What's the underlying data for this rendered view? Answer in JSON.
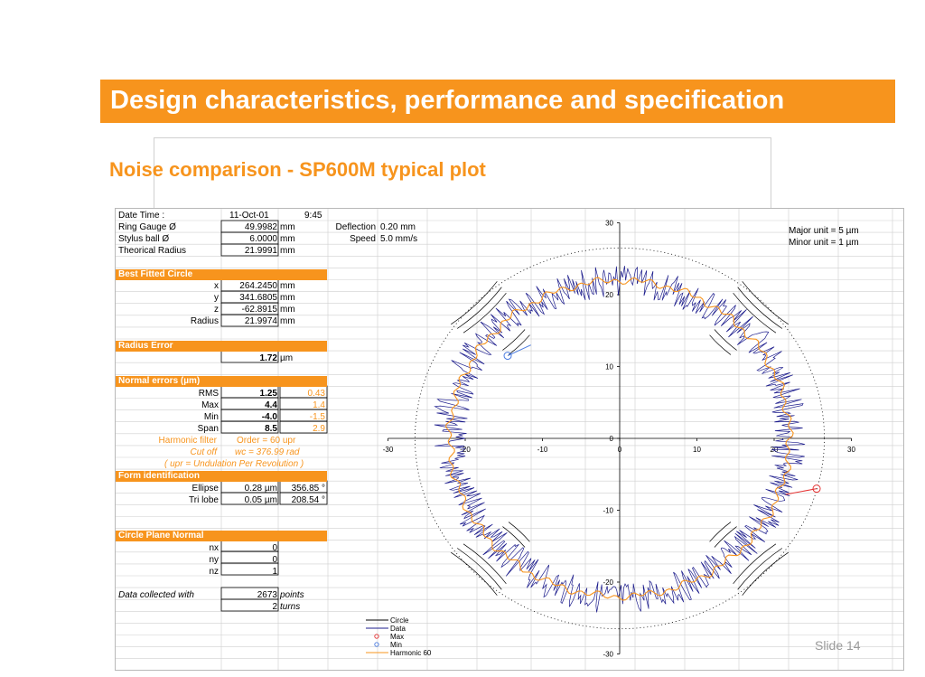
{
  "slide": {
    "title": "Design characteristics, performance and specification",
    "subtitle": "Noise comparison  - SP600M typical plot",
    "slide_number": "Slide 14",
    "accent_color": "#f7941d"
  },
  "table": {
    "date_time_label": "Date Time :",
    "date": "11-Oct-01",
    "time": "9:45",
    "ring_gauge_label": "Ring Gauge Ø",
    "ring_gauge_value": "49.9982",
    "stylus_label": "Stylus ball Ø",
    "stylus_value": "6.0000",
    "theo_label": "Theorical Radius",
    "theo_value": "21.9991",
    "mm": "mm",
    "deflection_label": "Deflection",
    "deflection_value": "0.20  mm",
    "speed_label": "Speed",
    "speed_value": "5.0  mm/s",
    "best_fit_header": "Best Fitted Circle",
    "x_label": "x",
    "x_value": "264.2450",
    "y_label": "y",
    "y_value": "341.6805",
    "z_label": "z",
    "z_value": "-62.8915",
    "radius_label": "Radius",
    "radius_value": "21.9974",
    "radius_error_header": "Radius Error",
    "radius_error_value": "1.72",
    "um": "µm",
    "normal_errors_header": "Normal errors (µm)",
    "rms_label": "RMS",
    "rms_value": "1.25",
    "rms_filtered": "0.43",
    "max_label": "Max",
    "max_value": "4.4",
    "max_filtered": "1.4",
    "min_label": "Min",
    "min_value": "-4.0",
    "min_filtered": "-1.5",
    "span_label": "Span",
    "span_value": "8.5",
    "span_filtered": "2.9",
    "harmonic_label": "Harmonic filter",
    "harmonic_value": "Order =  60  upr",
    "cutoff_label": "Cut off",
    "cutoff_value": "wc =  376.99  rad",
    "upr_note": "( upr = Undulation Per Revolution )",
    "form_header": "Form identification",
    "ellipse_label": "Ellipse",
    "ellipse_value": "0.28  µm",
    "ellipse_angle": "356.85  °",
    "trilobe_label": "Tri lobe",
    "trilobe_value": "0.05  µm",
    "trilobe_angle": "208.54  °",
    "plane_header": "Circle Plane Normal",
    "nx_label": "nx",
    "nx_value": "0",
    "ny_label": "ny",
    "ny_value": "0",
    "nz_label": "nz",
    "nz_value": "1",
    "collected_label": "Data collected with",
    "points_value": "2673",
    "points_label": "points",
    "turns_value": "2",
    "turns_label": "turns"
  },
  "chart_data": {
    "type": "scatter",
    "title": "",
    "xlabel": "",
    "ylabel": "",
    "xlim": [
      -30,
      30
    ],
    "ylim": [
      -30,
      30
    ],
    "x_ticks": [
      -30,
      -20,
      -10,
      0,
      10,
      20,
      30
    ],
    "y_ticks": [
      -30,
      -20,
      -10,
      0,
      10,
      20,
      30
    ],
    "notes": [
      "Major unit = 5 µm",
      "Minor unit = 1 µm"
    ],
    "legend": [
      "Circle",
      "Data",
      "Max",
      "Min",
      "Harmonic 60"
    ],
    "legend_position": "bottom-center",
    "series": [
      {
        "name": "Circle",
        "color": "#000000",
        "style": "dotted",
        "radius": 26.5
      },
      {
        "name": "Data",
        "color": "#1c1c8c",
        "radius_mean": 22.0,
        "span_um": 8.5
      },
      {
        "name": "Harmonic 60",
        "color": "#f7941d",
        "radius_mean": 22.0,
        "span_um": 2.9
      },
      {
        "name": "Max",
        "color": "#e53030",
        "x": 25.5,
        "y": -7.0
      },
      {
        "name": "Min",
        "color": "#4a7be0",
        "x": -14.5,
        "y": 11.5
      }
    ]
  }
}
